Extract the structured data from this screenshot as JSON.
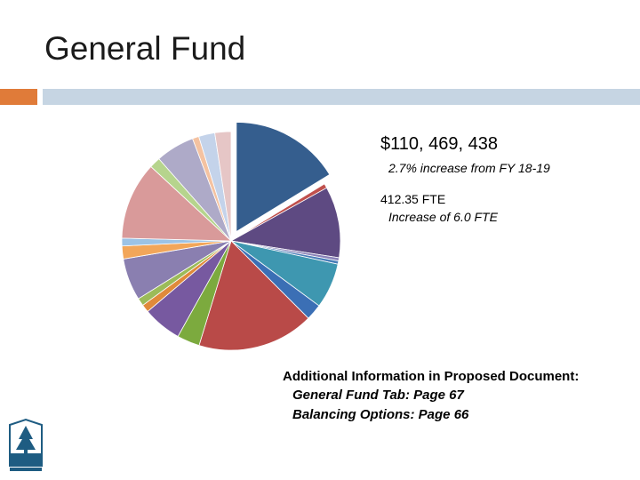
{
  "page": {
    "title": "General Fund"
  },
  "colors": {
    "accent": "#e07b39",
    "rule": "#c6d5e3"
  },
  "stats": {
    "amount": "$110, 469, 438",
    "amount_note": "2.7% increase from FY 18-19",
    "fte": "412.35 FTE",
    "fte_note": "Increase of 6.0 FTE"
  },
  "info": {
    "heading": "Additional Information in Proposed Document:",
    "line1": "General Fund Tab: Page 67",
    "line2": "Balancing Options: Page 66"
  },
  "logo": {
    "icon": "county-tree-logo-icon"
  },
  "chart_data": {
    "type": "pie",
    "exploded_slice": 0,
    "slices": [
      {
        "value": 17.0,
        "color": "#355e8e"
      },
      {
        "value": 0.7,
        "color": "#c0504d"
      },
      {
        "value": 11.0,
        "color": "#5e4a82"
      },
      {
        "value": 0.5,
        "color": "#8a82b8"
      },
      {
        "value": 0.5,
        "color": "#4a7eb8"
      },
      {
        "value": 7.0,
        "color": "#3e97b0"
      },
      {
        "value": 2.5,
        "color": "#3b6fb5"
      },
      {
        "value": 18.0,
        "color": "#b94a48"
      },
      {
        "value": 3.5,
        "color": "#7caa3e"
      },
      {
        "value": 6.0,
        "color": "#7759a0"
      },
      {
        "value": 1.2,
        "color": "#e08a3a"
      },
      {
        "value": 1.2,
        "color": "#9bbb59"
      },
      {
        "value": 6.5,
        "color": "#8a7fb0"
      },
      {
        "value": 2.0,
        "color": "#f2a65a"
      },
      {
        "value": 1.2,
        "color": "#9cc3e6"
      },
      {
        "value": 12.0,
        "color": "#d99a9a"
      },
      {
        "value": 1.7,
        "color": "#b6d48d"
      },
      {
        "value": 6.0,
        "color": "#aeaac8"
      },
      {
        "value": 1.0,
        "color": "#f4c2a1"
      },
      {
        "value": 2.5,
        "color": "#c4d3ea"
      },
      {
        "value": 2.5,
        "color": "#e6c6c6"
      }
    ]
  }
}
